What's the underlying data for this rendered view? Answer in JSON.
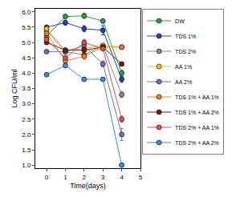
{
  "chart_data": {
    "type": "line",
    "x_label": "Time(days)",
    "y_label": "Log CFU/ml",
    "x": [
      0,
      1,
      2,
      3,
      4
    ],
    "xlim": [
      -0.6,
      5
    ],
    "xticks": [
      0,
      1,
      2,
      3,
      4,
      5
    ],
    "ylim": [
      0.9,
      6.1
    ],
    "yticks": [
      {
        "value": 1,
        "label": "1.0"
      },
      1.5,
      {
        "value": 2,
        "label": "2.0"
      },
      2.5,
      {
        "value": 3,
        "label": "3.0"
      },
      3.5,
      {
        "value": 4,
        "label": "4.0"
      },
      4.5,
      {
        "value": 5,
        "label": "5.0"
      },
      5.5,
      {
        "value": 6,
        "label": "6.0"
      }
    ],
    "grid": false,
    "legend": "right",
    "marker": "circle",
    "series": [
      {
        "name": "DW",
        "color": "#2e9e3a",
        "values": [
          5.2,
          5.85,
          5.87,
          5.7,
          4.0
        ],
        "error": [
          0.05,
          0.05,
          0.08,
          0.06,
          0.1
        ]
      },
      {
        "name": "TDS 1%",
        "color": "#1f3fbf",
        "values": [
          5.5,
          5.65,
          5.45,
          5.4,
          3.8
        ],
        "error": [
          0.05,
          0.08,
          0.1,
          0.15,
          0.1
        ]
      },
      {
        "name": "TDS 2%",
        "color": "#8a8a8a",
        "values": [
          5.4,
          4.7,
          4.6,
          4.9,
          3.3
        ],
        "error": [
          0.05,
          0.05,
          0.1,
          0.05,
          0.1
        ]
      },
      {
        "name": "AA 1%",
        "color": "#f0c020",
        "values": [
          5.45,
          4.75,
          4.8,
          4.9,
          4.85
        ],
        "error": [
          0.05,
          0.05,
          0.1,
          0.05,
          0.05
        ]
      },
      {
        "name": "AA 2%",
        "color": "#7070b8",
        "values": [
          4.7,
          4.7,
          4.9,
          4.3,
          2.0
        ],
        "error": [
          0.05,
          0.05,
          0.1,
          0.1,
          0.2
        ]
      },
      {
        "name": "TDS 1% + AA 1%",
        "color": "#f08020",
        "values": [
          5.3,
          4.4,
          4.55,
          4.85,
          4.85
        ],
        "error": [
          0.05,
          0.05,
          0.1,
          0.05,
          0.05
        ]
      },
      {
        "name": "TDS 1% + AA 2%",
        "color": "#6b2010",
        "values": [
          5.0,
          4.75,
          4.75,
          4.85,
          4.3
        ],
        "error": [
          0.05,
          0.05,
          0.1,
          0.05,
          0.05
        ]
      },
      {
        "name": "TDS 2% + AA 1%",
        "color": "#e05050",
        "values": [
          5.1,
          4.5,
          5.0,
          4.8,
          2.5
        ],
        "error": [
          0.05,
          0.05,
          0.1,
          0.05,
          0.1
        ]
      },
      {
        "name": "TDS 2% + AA 2%",
        "color": "#3a8fd0",
        "values": [
          3.95,
          4.25,
          3.8,
          3.8,
          1.0
        ],
        "error": [
          0.05,
          0.05,
          0.05,
          0.05,
          0.05
        ]
      }
    ]
  }
}
